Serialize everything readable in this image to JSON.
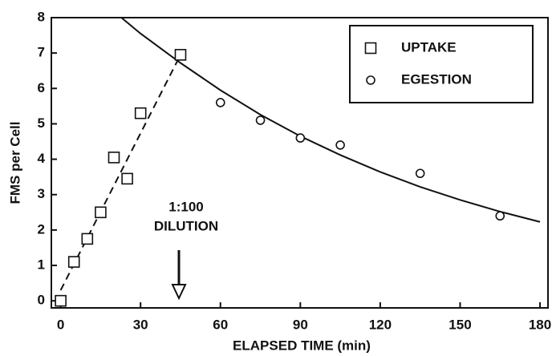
{
  "chart_data": {
    "type": "scatter",
    "xlabel": "ELAPSED TIME (min)",
    "ylabel": "FMS per Cell",
    "xlim": [
      -3.5,
      183
    ],
    "xticks": [
      0,
      30,
      60,
      90,
      120,
      150,
      180
    ],
    "ylim": [
      -0.2,
      8
    ],
    "yticks": [
      0,
      1,
      2,
      3,
      4,
      5,
      6,
      7,
      8
    ],
    "legend": "upper right",
    "series": [
      {
        "name": "UPTAKE",
        "marker": "square",
        "color": "#111111",
        "x": [
          0,
          5,
          10,
          15,
          20,
          25,
          30,
          45
        ],
        "values": [
          0,
          1.1,
          1.75,
          2.5,
          4.05,
          3.45,
          5.3,
          6.95
        ]
      },
      {
        "name": "EGESTION",
        "marker": "circle",
        "color": "#111111",
        "x": [
          45,
          60,
          75,
          90,
          105,
          135,
          165
        ],
        "values": [
          6.95,
          5.6,
          5.1,
          4.6,
          4.4,
          3.6,
          2.4
        ]
      }
    ],
    "lines": [
      {
        "style": "dashed",
        "x": [
          0,
          45
        ],
        "values": [
          0.3,
          6.95
        ]
      },
      {
        "style": "solid",
        "x": [
          22.8,
          30,
          45,
          60,
          75,
          90,
          105,
          120,
          135,
          150,
          165,
          180
        ],
        "values": [
          8,
          7.55,
          6.72,
          5.95,
          5.26,
          4.65,
          4.12,
          3.64,
          3.22,
          2.85,
          2.52,
          2.23
        ]
      }
    ],
    "annotation": [
      "1:100",
      "DILUTION"
    ]
  }
}
